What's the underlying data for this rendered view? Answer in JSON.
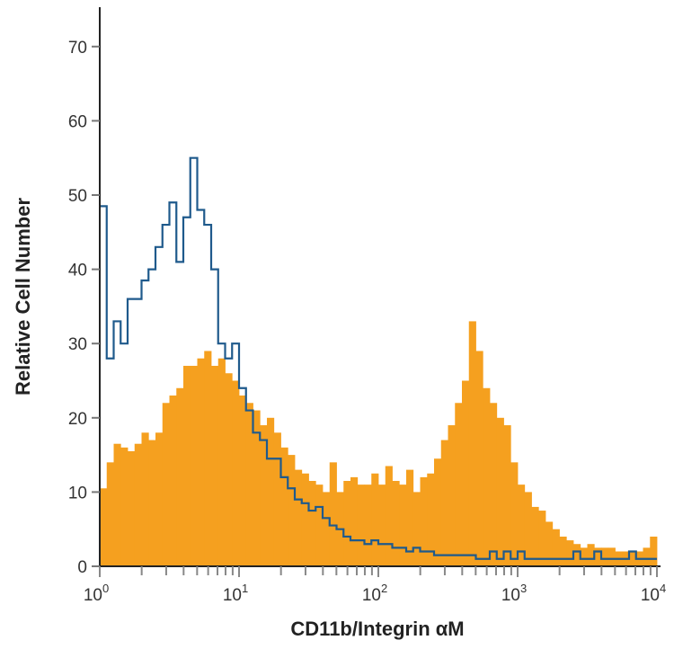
{
  "chart_data": {
    "type": "histogram",
    "title": "",
    "xlabel": "CD11b/Integrin αM",
    "ylabel": "Relative Cell Number",
    "x_scale": "log",
    "xlim": [
      1,
      10000
    ],
    "ylim": [
      0,
      75
    ],
    "grid": false,
    "legend": "none",
    "x_ticks": [
      {
        "base": "10",
        "exp": "0"
      },
      {
        "base": "10",
        "exp": "1"
      },
      {
        "base": "10",
        "exp": "2"
      },
      {
        "base": "10",
        "exp": "3"
      },
      {
        "base": "10",
        "exp": "4"
      }
    ],
    "y_ticks": [
      "0",
      "10",
      "20",
      "30",
      "40",
      "50",
      "60",
      "70"
    ],
    "y_tick_values": [
      0,
      10,
      20,
      30,
      40,
      50,
      60,
      70
    ],
    "bin_log10_x": [
      0.0,
      0.05,
      0.1,
      0.15,
      0.2,
      0.25,
      0.3,
      0.35,
      0.4,
      0.45,
      0.5,
      0.55,
      0.6,
      0.65,
      0.7,
      0.75,
      0.8,
      0.85,
      0.9,
      0.95,
      1.0,
      1.05,
      1.1,
      1.15,
      1.2,
      1.25,
      1.3,
      1.35,
      1.4,
      1.45,
      1.5,
      1.55,
      1.6,
      1.65,
      1.7,
      1.75,
      1.8,
      1.85,
      1.9,
      1.95,
      2.0,
      2.05,
      2.1,
      2.15,
      2.2,
      2.25,
      2.3,
      2.35,
      2.4,
      2.45,
      2.5,
      2.55,
      2.6,
      2.65,
      2.7,
      2.75,
      2.8,
      2.85,
      2.9,
      2.95,
      3.0,
      3.05,
      3.1,
      3.15,
      3.2,
      3.25,
      3.3,
      3.35,
      3.4,
      3.45,
      3.5,
      3.55,
      3.6,
      3.65,
      3.7,
      3.75,
      3.8,
      3.85,
      3.9,
      3.95
    ],
    "series": [
      {
        "style": "filled",
        "color": "#F5A01F",
        "values": [
          10.5,
          14,
          16.5,
          16,
          15.5,
          16.5,
          18,
          17,
          18,
          22,
          23,
          24,
          27,
          27,
          28,
          29,
          27,
          28,
          26,
          25,
          23,
          22,
          21,
          19,
          20,
          18,
          16,
          15,
          13,
          12.5,
          11.5,
          11,
          10,
          14,
          10,
          11.5,
          12,
          11,
          11,
          12.5,
          11,
          13.5,
          11.5,
          11,
          13,
          10,
          12,
          12.5,
          14.5,
          17,
          19,
          22,
          25,
          33,
          29,
          24,
          22,
          20,
          19,
          14,
          11,
          10,
          8,
          7.5,
          6,
          5,
          4,
          3.5,
          3,
          2.5,
          3,
          2.5,
          2.5,
          2.5,
          2,
          2,
          2,
          2,
          2.5,
          4
        ]
      },
      {
        "style": "outline",
        "color": "#1F5A8C",
        "values": [
          48.5,
          28,
          33,
          30,
          36,
          36,
          38.5,
          40,
          43,
          46,
          49,
          41,
          47,
          55,
          48,
          46,
          40,
          30,
          28,
          30,
          24,
          21,
          18,
          17,
          14.5,
          14.5,
          12,
          10.5,
          9,
          8.5,
          7.5,
          8,
          6.5,
          5.5,
          5,
          4,
          3.5,
          3.5,
          3,
          3.5,
          3,
          3,
          2.5,
          2.5,
          2,
          2.5,
          2,
          2,
          1.5,
          1.5,
          1.5,
          1.5,
          1.5,
          1.5,
          1,
          1,
          2,
          1,
          2,
          1,
          2,
          1,
          1,
          1,
          1,
          1,
          1,
          1,
          2,
          1,
          1,
          2,
          1,
          1,
          1,
          1,
          2,
          1,
          1,
          1
        ]
      }
    ]
  }
}
